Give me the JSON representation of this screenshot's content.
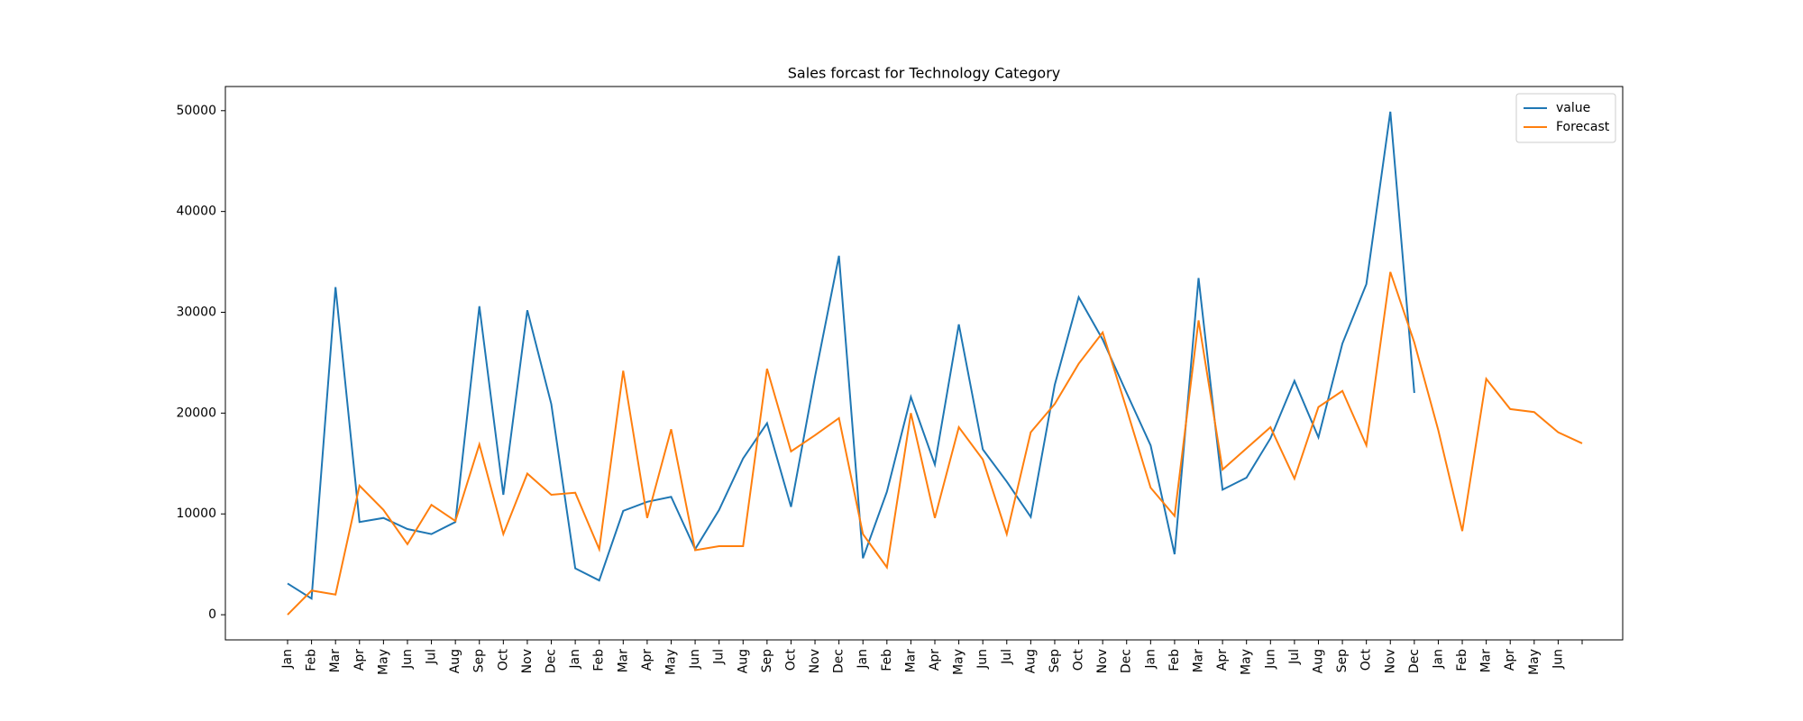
{
  "chart_data": {
    "type": "line",
    "title": "Sales forcast for Technology Category",
    "categories": [
      "Jan",
      "Feb",
      "Mar",
      "Apr",
      "May",
      "Jun",
      "Jul",
      "Aug",
      "Sep",
      "Oct",
      "Nov",
      "Dec",
      "Jan",
      "Feb",
      "Mar",
      "Apr",
      "May",
      "Jun",
      "Jul",
      "Aug",
      "Sep",
      "Oct",
      "Nov",
      "Dec",
      "Jan",
      "Feb",
      "Mar",
      "Apr",
      "May",
      "Jun",
      "Jul",
      "Aug",
      "Sep",
      "Oct",
      "Nov",
      "Dec",
      "Jan",
      "Feb",
      "Mar",
      "Apr",
      "May",
      "Jun",
      "Jul",
      "Aug",
      "Sep",
      "Oct",
      "Nov",
      "Dec",
      "Jan",
      "Feb",
      "Mar",
      "Apr",
      "May",
      "Jun",
      null
    ],
    "series": [
      {
        "name": "value",
        "color": "#1f77b4",
        "values": [
          3100,
          1600,
          32500,
          9200,
          9600,
          8500,
          8000,
          9200,
          30600,
          11900,
          30200,
          20900,
          4600,
          3400,
          10300,
          11200,
          11700,
          6500,
          10400,
          15500,
          19000,
          10700,
          23600,
          35600,
          5600,
          12200,
          21600,
          14900,
          28800,
          16400,
          13200,
          9700,
          22800,
          31500,
          27300,
          22000,
          16800,
          6000,
          33400,
          12400,
          13600,
          17500,
          23200,
          17600,
          26900,
          32800,
          49900,
          22000,
          null,
          null,
          null,
          null,
          null,
          null,
          null
        ]
      },
      {
        "name": "Forecast",
        "color": "#ff7f0e",
        "values": [
          0,
          2400,
          2000,
          12800,
          10400,
          7000,
          10900,
          9300,
          16900,
          8000,
          14000,
          11900,
          12100,
          6500,
          24200,
          9600,
          18400,
          6400,
          6800,
          6800,
          24400,
          16200,
          17800,
          19500,
          8000,
          4700,
          20000,
          9600,
          18600,
          15400,
          8000,
          18100,
          20900,
          24900,
          28000,
          20400,
          12600,
          9800,
          29200,
          14400,
          16500,
          18600,
          13500,
          20600,
          22200,
          16800,
          34000,
          27000,
          18300,
          8300,
          23400,
          20400,
          20100,
          18100,
          17000
        ]
      }
    ],
    "ylim": [
      -2495,
      52395
    ],
    "yticks": [
      0,
      10000,
      20000,
      30000,
      40000,
      50000
    ],
    "grid": false,
    "legend": "upper right"
  }
}
